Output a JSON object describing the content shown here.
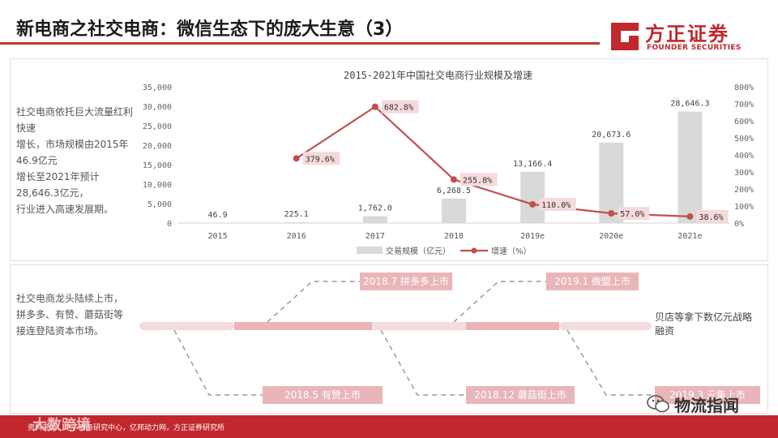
{
  "header": {
    "title": "新电商之社交电商：微信生态下的庞大生意（3）",
    "logo_cn": "方正证券",
    "logo_en": "FOUNDER SECURITIES",
    "brand_color": "#c0282d"
  },
  "top_panel": {
    "side_lines": [
      "社交电商依托巨大流量红利快速",
      "增长，市场规模由2015年46.9亿元",
      "增长至2021年预计28,646.3亿元，",
      "行业进入高速发展期。"
    ]
  },
  "bottom_panel": {
    "side_lines": [
      "社交电商龙头陆续上市，",
      "拼多多、有赞、蘑菇街等",
      "接连登陆资本市场。"
    ],
    "right_note": "贝店等拿下数亿元战略融资",
    "events_top": [
      "2018.7 拼多多上市",
      "2019.1 微盟上市"
    ],
    "events_bottom": [
      "2018.5 有赞上市",
      "2018.12 蘑菇街上市",
      "2019.3 云集上市"
    ]
  },
  "chart_data": {
    "type": "bar",
    "title": "2015-2021年中国社交电商行业规模及增速",
    "categories": [
      "2015",
      "2016",
      "2017",
      "2018",
      "2019e",
      "2020e",
      "2021e"
    ],
    "series": [
      {
        "name": "交易规模（亿元）",
        "type": "bar",
        "axis": "left",
        "color": "#d9d9d9",
        "values": [
          46.9,
          225.1,
          1762.0,
          6268.5,
          13166.4,
          20673.6,
          28646.3
        ],
        "labels": [
          "46.9",
          "225.1",
          "1,762.0",
          "6,268.5",
          "13,166.4",
          "20,673.6",
          "28,646.3"
        ]
      },
      {
        "name": "增速（%）",
        "type": "line",
        "axis": "right",
        "color": "#c0504d",
        "values": [
          null,
          379.6,
          682.8,
          255.8,
          110.0,
          57.0,
          38.6
        ],
        "labels": [
          "",
          "379.6%",
          "682.8%",
          "255.8%",
          "110.0%",
          "57.0%",
          "38.6%"
        ]
      }
    ],
    "ylim_left": [
      0,
      35000
    ],
    "ylim_right": [
      0,
      800
    ],
    "left_ticks": [
      "0",
      "5,000",
      "10,000",
      "15,000",
      "20,000",
      "25,000",
      "30,000",
      "35,000"
    ],
    "right_ticks": [
      "0%",
      "100%",
      "200%",
      "300%",
      "400%",
      "500%",
      "600%",
      "700%",
      "800%"
    ],
    "legend_position": "bottom",
    "grid": false
  },
  "footer": {
    "source": "资料来源：电子商务研究中心，亿邦动力网，方正证券研究所",
    "watermark_left": "大数跨境",
    "watermark_right": "物流指闻"
  }
}
